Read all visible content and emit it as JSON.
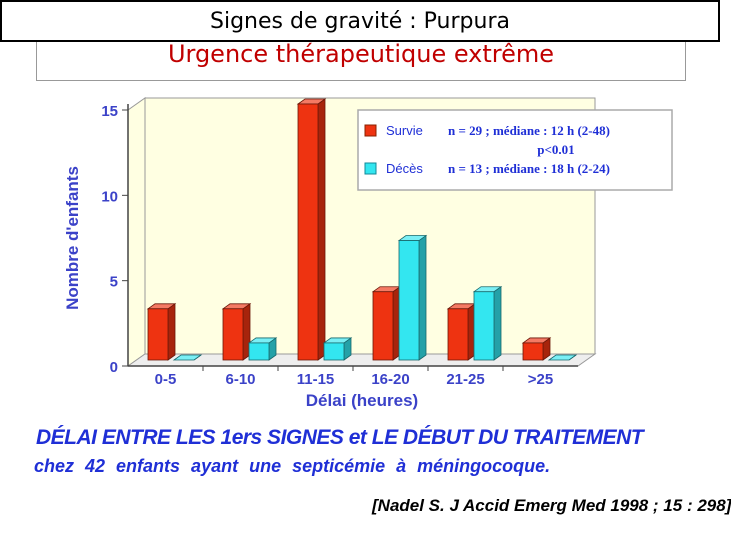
{
  "header": {
    "title": "Signes de gravité : Purpura",
    "subtitle": "Urgence thérapeutique extrême"
  },
  "chart_data": {
    "type": "bar",
    "categories": [
      "0-5",
      "6-10",
      "11-15",
      "16-20",
      "21-25",
      ">25"
    ],
    "series": [
      {
        "name": "Survie",
        "color": "#ee3311",
        "values": [
          3,
          3,
          15,
          4,
          3,
          1
        ]
      },
      {
        "name": "Décès",
        "color": "#33e6f0",
        "values": [
          0,
          1,
          1,
          7,
          4,
          0
        ]
      }
    ],
    "xlabel": "Délai (heures)",
    "ylabel": "Nombre d'enfants",
    "ylim": [
      0,
      15
    ],
    "yticks": [
      "0",
      "5",
      "10",
      "15"
    ],
    "legend": {
      "placement": "top-right",
      "entries": [
        {
          "label": "Survie",
          "stat": "n = 29 ; médiane : 12 h (2-48)"
        },
        {
          "label": "Décès",
          "stat": "n = 13 ; médiane : 18 h (2-24)"
        }
      ],
      "pvalue": "p<0.01"
    }
  },
  "caption": {
    "line1": "DÉLAI ENTRE LES 1ers SIGNES  et  LE DÉBUT DU TRAITEMENT",
    "line2": "chez  42  enfants  ayant une  septicémie  à  méningocoque."
  },
  "citation": "[Nadel S. J Accid Emerg Med 1998 ; 15 :  298]"
}
